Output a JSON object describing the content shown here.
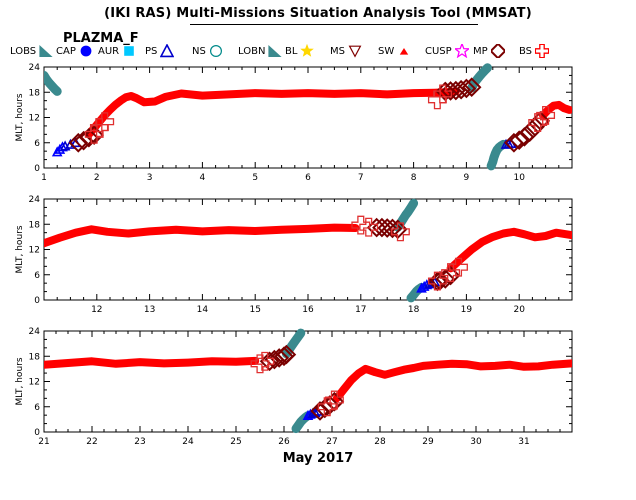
{
  "window": {
    "title": "(IKI RAS) Multi-Missions Situation Analysis Tool (MMSAT)",
    "subtitle": "PLAZMA_F"
  },
  "legend": [
    {
      "label": "LOBS",
      "symbol": "triangle-filled",
      "color": "#3a8a8e"
    },
    {
      "label": "CAP",
      "symbol": "circle-filled",
      "color": "#0000ff"
    },
    {
      "label": "AUR",
      "symbol": "square-filled",
      "color": "#00c8ff"
    },
    {
      "label": "PS",
      "symbol": "triangle-open",
      "color": "#0000cc"
    },
    {
      "label": "NS",
      "symbol": "circle-open",
      "color": "#008a8a"
    },
    {
      "label": "LOBN",
      "symbol": "triangle-filled",
      "color": "#3a8a8e"
    },
    {
      "label": "BL",
      "symbol": "star-filled",
      "color": "#ffd700"
    },
    {
      "label": "MS",
      "symbol": "triangle-down-open",
      "color": "#800000"
    },
    {
      "label": "SW",
      "symbol": "triangle-small",
      "color": "#ff0000"
    },
    {
      "label": "CUSP",
      "symbol": "star-open",
      "color": "#ff00ff"
    },
    {
      "label": "MP",
      "symbol": "diamond-open",
      "color": "#7a0000"
    },
    {
      "label": "BS",
      "symbol": "cross-open",
      "color": "#ff0000"
    }
  ],
  "chart_data": {
    "type": "scatter",
    "xlabel": "May 2017",
    "ylabel": "MLT, hours",
    "ylim": [
      0,
      24
    ],
    "yticks": [
      0,
      6,
      12,
      18,
      24
    ],
    "panels": [
      {
        "xlim": [
          1,
          11
        ],
        "xticks": [
          1,
          2,
          3,
          4,
          5,
          6,
          7,
          8,
          9,
          10
        ],
        "series": [
          {
            "symbol": "sw",
            "x": [
              1.85,
              1.95,
              2.05,
              2.15,
              2.25,
              2.35,
              2.45,
              2.55,
              2.65,
              2.75,
              2.9,
              3.1,
              3.3,
              3.6,
              4.0,
              4.5,
              5.0,
              5.5,
              6.0,
              6.5,
              7.0,
              7.5,
              8.0,
              8.4,
              8.6,
              8.8
            ],
            "y": [
              8.0,
              9.5,
              11.0,
              12.5,
              13.8,
              15.0,
              16.0,
              16.8,
              17.1,
              16.6,
              15.6,
              15.8,
              16.9,
              17.7,
              17.2,
              17.5,
              17.8,
              17.6,
              17.8,
              17.6,
              17.8,
              17.5,
              17.8,
              17.9,
              18.0,
              18.2
            ]
          },
          {
            "symbol": "sw",
            "x": [
              10.45,
              10.55,
              10.65,
              10.75,
              10.85,
              10.95
            ],
            "y": [
              12.5,
              13.8,
              14.8,
              15.0,
              14.2,
              13.8
            ]
          },
          {
            "symbol": "lobs",
            "x": [
              1.0,
              1.05,
              1.1,
              1.15,
              1.2,
              1.25
            ],
            "y": [
              22.0,
              21.0,
              20.2,
              19.5,
              18.8,
              18.2
            ]
          },
          {
            "symbol": "lobs",
            "x": [
              9.1,
              9.15,
              9.2,
              9.25,
              9.3,
              9.35,
              9.4
            ],
            "y": [
              19.0,
              20.2,
              21.0,
              21.8,
              22.5,
              23.2,
              23.8
            ]
          },
          {
            "symbol": "lobs",
            "x": [
              9.47,
              9.5,
              9.52,
              9.55,
              9.58,
              9.62,
              9.66,
              9.7
            ],
            "y": [
              0.5,
              1.5,
              2.5,
              3.5,
              4.3,
              4.9,
              5.3,
              5.6
            ]
          },
          {
            "symbol": "cap",
            "x": [
              1.25,
              1.3,
              1.35
            ],
            "y": [
              3.8,
              4.4,
              5.0
            ]
          },
          {
            "symbol": "ps",
            "x": [
              1.4,
              1.5,
              1.6
            ],
            "y": [
              5.2,
              5.6,
              6.0
            ]
          },
          {
            "symbol": "ps",
            "x": [
              9.75,
              9.8,
              9.85
            ],
            "y": [
              5.6,
              5.7,
              5.8
            ]
          },
          {
            "symbol": "mp",
            "x": [
              1.65,
              1.75,
              1.85,
              1.95
            ],
            "y": [
              6.0,
              6.5,
              7.2,
              7.8
            ]
          },
          {
            "symbol": "mp",
            "x": [
              8.6,
              8.7,
              8.8,
              8.9,
              9.0,
              9.1
            ],
            "y": [
              18.2,
              18.3,
              18.4,
              18.6,
              18.9,
              19.2
            ]
          },
          {
            "symbol": "mp",
            "x": [
              9.9,
              10.0,
              10.1,
              10.2,
              10.3,
              10.4
            ],
            "y": [
              6.0,
              6.6,
              7.4,
              8.5,
              9.8,
              11.2
            ]
          },
          {
            "symbol": "bs",
            "x": [
              1.95,
              2.05,
              2.15
            ],
            "y": [
              8.0,
              9.6,
              11.0
            ]
          },
          {
            "symbol": "bs",
            "x": [
              8.45,
              8.55
            ],
            "y": [
              16.2,
              17.6
            ]
          },
          {
            "symbol": "bs",
            "x": [
              10.35,
              10.5
            ],
            "y": [
              10.8,
              12.5
            ]
          }
        ]
      },
      {
        "xlim": [
          11,
          21
        ],
        "xticks": [
          12,
          13,
          14,
          15,
          16,
          17,
          18,
          19,
          20
        ],
        "series": [
          {
            "symbol": "sw",
            "x": [
              11.0,
              11.3,
              11.6,
              11.9,
              12.2,
              12.6,
              13.0,
              13.5,
              14.0,
              14.5,
              15.0,
              15.5,
              16.0,
              16.5,
              16.9
            ],
            "y": [
              13.5,
              14.8,
              16.0,
              16.8,
              16.2,
              15.8,
              16.3,
              16.7,
              16.3,
              16.6,
              16.4,
              16.7,
              16.9,
              17.2,
              17.1
            ]
          },
          {
            "symbol": "sw",
            "x": [
              18.7,
              18.9,
              19.1,
              19.3,
              19.5,
              19.7,
              19.9,
              20.1,
              20.3,
              20.5,
              20.7,
              21.0
            ],
            "y": [
              7.5,
              9.8,
              12.0,
              13.8,
              15.0,
              15.8,
              16.2,
              15.6,
              14.9,
              15.2,
              16.0,
              15.4
            ]
          },
          {
            "symbol": "lobs",
            "x": [
              17.7,
              17.75,
              17.8,
              17.85,
              17.9,
              17.95,
              18.0
            ],
            "y": [
              17.3,
              18.2,
              19.2,
              20.2,
              21.0,
              22.0,
              23.0
            ]
          },
          {
            "symbol": "lobs",
            "x": [
              17.95,
              18.0,
              18.05,
              18.1,
              18.15
            ],
            "y": [
              0.5,
              1.2,
              2.0,
              2.6,
              3.0
            ]
          },
          {
            "symbol": "cap",
            "x": [
              18.15,
              18.2,
              18.25
            ],
            "y": [
              2.8,
              3.2,
              3.6
            ]
          },
          {
            "symbol": "ps",
            "x": [
              18.3,
              18.35,
              18.4
            ],
            "y": [
              3.8,
              4.1,
              4.3
            ]
          },
          {
            "symbol": "mp",
            "x": [
              17.3,
              17.4,
              17.5,
              17.6,
              17.7
            ],
            "y": [
              17.2,
              17.2,
              17.1,
              17.0,
              16.8
            ]
          },
          {
            "symbol": "mp",
            "x": [
              18.45,
              18.5,
              18.6,
              18.7
            ],
            "y": [
              4.4,
              4.6,
              5.0,
              5.8
            ]
          },
          {
            "symbol": "bs",
            "x": [
              17.0,
              17.15
            ],
            "y": [
              17.8,
              17.3
            ]
          },
          {
            "symbol": "bs",
            "x": [
              17.75,
              18.45
            ],
            "y": [
              16.2,
              4.5
            ]
          },
          {
            "symbol": "bs",
            "x": [
              18.7,
              18.85
            ],
            "y": [
              6.5,
              7.8
            ]
          }
        ]
      },
      {
        "xlim": [
          21,
          32
        ],
        "xticks": [
          21,
          22,
          23,
          24,
          25,
          26,
          27,
          28,
          29,
          30,
          31
        ],
        "series": [
          {
            "symbol": "sw",
            "x": [
              21.0,
              21.5,
              22.0,
              22.5,
              23.0,
              23.5,
              24.0,
              24.5,
              25.0,
              25.4
            ],
            "y": [
              16.0,
              16.4,
              16.8,
              16.2,
              16.6,
              16.3,
              16.5,
              16.8,
              16.7,
              16.9
            ]
          },
          {
            "symbol": "sw",
            "x": [
              27.1,
              27.25,
              27.4,
              27.55,
              27.7,
              27.9,
              28.1,
              28.3,
              28.5,
              28.7,
              28.9,
              29.2,
              29.5,
              29.8,
              30.1,
              30.4,
              30.7,
              31.0,
              31.3,
              31.6,
              32.0
            ],
            "y": [
              8.0,
              10.2,
              12.3,
              13.9,
              15.0,
              14.2,
              13.6,
              14.2,
              14.8,
              15.2,
              15.7,
              16.0,
              16.2,
              16.1,
              15.6,
              15.7,
              16.0,
              15.5,
              15.6,
              16.0,
              16.3
            ]
          },
          {
            "symbol": "lobs",
            "x": [
              26.05,
              26.1,
              26.15,
              26.2,
              26.25,
              26.3,
              26.35
            ],
            "y": [
              18.6,
              19.4,
              20.3,
              21.1,
              21.9,
              22.7,
              23.5
            ]
          },
          {
            "symbol": "lobs",
            "x": [
              26.25,
              26.3,
              26.35,
              26.4,
              26.45,
              26.5
            ],
            "y": [
              0.8,
              1.6,
              2.4,
              3.0,
              3.5,
              3.9
            ]
          },
          {
            "symbol": "cap",
            "x": [
              26.5,
              26.55
            ],
            "y": [
              3.9,
              4.2
            ]
          },
          {
            "symbol": "ps",
            "x": [
              26.6,
              26.65,
              26.7
            ],
            "y": [
              4.4,
              4.6,
              4.9
            ]
          },
          {
            "symbol": "mp",
            "x": [
              25.7,
              25.8,
              25.9,
              26.0,
              26.05
            ],
            "y": [
              16.8,
              17.2,
              17.6,
              18.0,
              18.4
            ]
          },
          {
            "symbol": "mp",
            "x": [
              26.75,
              26.85,
              26.95,
              27.05
            ],
            "y": [
              5.0,
              5.6,
              6.4,
              7.2
            ]
          },
          {
            "symbol": "bs",
            "x": [
              25.5,
              25.6
            ],
            "y": [
              16.2,
              16.8
            ]
          },
          {
            "symbol": "bs",
            "x": [
              26.9,
              27.05
            ],
            "y": [
              6.0,
              7.6
            ]
          }
        ]
      }
    ]
  }
}
